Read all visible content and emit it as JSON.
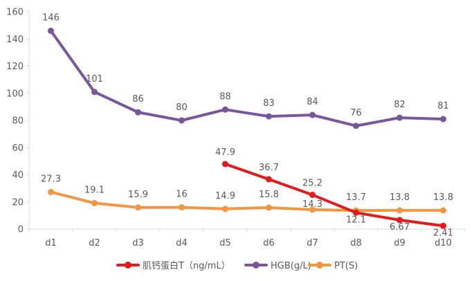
{
  "chart_data": {
    "type": "line",
    "title": "",
    "xlabel": "",
    "ylabel": "",
    "ylim": [
      0,
      160
    ],
    "yticks": [
      0,
      20,
      40,
      60,
      80,
      100,
      120,
      140,
      160
    ],
    "grid": false,
    "legend_position": "bottom",
    "categories": [
      "d1",
      "d2",
      "d3",
      "d4",
      "d5",
      "d6",
      "d7",
      "d8",
      "d9",
      "d10"
    ],
    "series": [
      {
        "name": "肌钙蛋白T（ng/mL）",
        "color": "#e31a1c",
        "values": [
          null,
          null,
          null,
          null,
          47.9,
          36.7,
          25.2,
          12.1,
          6.67,
          2.41
        ],
        "labels": [
          "",
          "",
          "",
          "",
          "47.9",
          "36.7",
          "25.2",
          "12.1",
          "6.67",
          "2.41"
        ]
      },
      {
        "name": "HGB(g/L)",
        "color": "#7a559e",
        "values": [
          146,
          101,
          86,
          80,
          88,
          83,
          84,
          76,
          82,
          81
        ],
        "labels": [
          "146",
          "101",
          "86",
          "80",
          "88",
          "83",
          "84",
          "76",
          "82",
          "81"
        ]
      },
      {
        "name": "PT(S)",
        "color": "#f4963f",
        "values": [
          27.3,
          19.1,
          15.9,
          16,
          14.9,
          15.8,
          14.3,
          13.7,
          13.8,
          13.8
        ],
        "labels": [
          "27.3",
          "19.1",
          "15.9",
          "16",
          "14.9",
          "15.8",
          "14.3",
          "13.7",
          "13.8",
          "13.8"
        ]
      }
    ]
  }
}
